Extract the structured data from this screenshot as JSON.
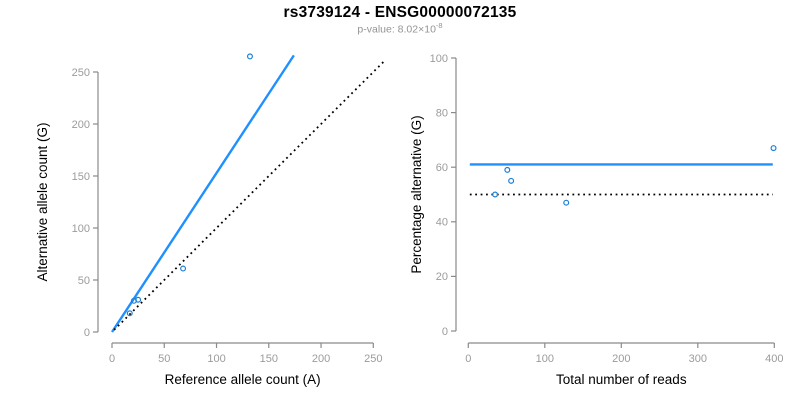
{
  "header": {
    "title": "rs3739124 - ENSG00000072135",
    "subtitle_text": "p-value: 8.02×10",
    "subtitle_exponent": "-8"
  },
  "colors": {
    "blue": "#1E90FF",
    "point_blue": "#1C7FD6",
    "black": "#000000",
    "axis_gray": "#8A8A8A",
    "tick_gray": "#9B9B9B",
    "label_black": "#000000"
  },
  "chart_data": [
    {
      "type": "scatter",
      "panel": "allele-counts",
      "xlabel": "Reference allele count (A)",
      "ylabel": "Alternative allele count (G)",
      "xlim": [
        0,
        250
      ],
      "ylim": [
        0,
        250
      ],
      "xticks": [
        0,
        50,
        100,
        150,
        200,
        250
      ],
      "yticks": [
        0,
        50,
        100,
        150,
        200,
        250
      ],
      "grid": false,
      "points": [
        [
          17,
          18
        ],
        [
          21,
          30
        ],
        [
          25,
          31
        ],
        [
          68,
          61
        ],
        [
          132,
          265
        ]
      ],
      "lines": [
        {
          "name": "fitted-allelic-ratio-line",
          "style": "solid",
          "color": "blue",
          "from": [
            0,
            0
          ],
          "to": [
            174,
            266
          ]
        },
        {
          "name": "identity-line",
          "style": "dotted",
          "color": "black",
          "from": [
            2,
            2
          ],
          "to": [
            261,
            261
          ]
        }
      ]
    },
    {
      "type": "scatter",
      "panel": "percentage-vs-coverage",
      "xlabel": "Total number of reads",
      "ylabel": "Percentage alternative (G)",
      "xlim": [
        0,
        400
      ],
      "ylim": [
        0,
        100
      ],
      "xticks": [
        0,
        100,
        200,
        300,
        400
      ],
      "yticks": [
        0,
        20,
        40,
        60,
        80,
        100
      ],
      "grid": false,
      "points": [
        [
          35,
          50
        ],
        [
          51,
          59
        ],
        [
          56,
          55
        ],
        [
          128,
          47
        ],
        [
          399,
          67
        ]
      ],
      "lines": [
        {
          "name": "mean-percentage-line",
          "style": "solid",
          "color": "blue",
          "from": [
            2,
            61
          ],
          "to": [
            398,
            61
          ]
        },
        {
          "name": "fifty-percent-line",
          "style": "dotted",
          "color": "black",
          "from": [
            2,
            50
          ],
          "to": [
            398,
            50
          ]
        }
      ]
    }
  ]
}
